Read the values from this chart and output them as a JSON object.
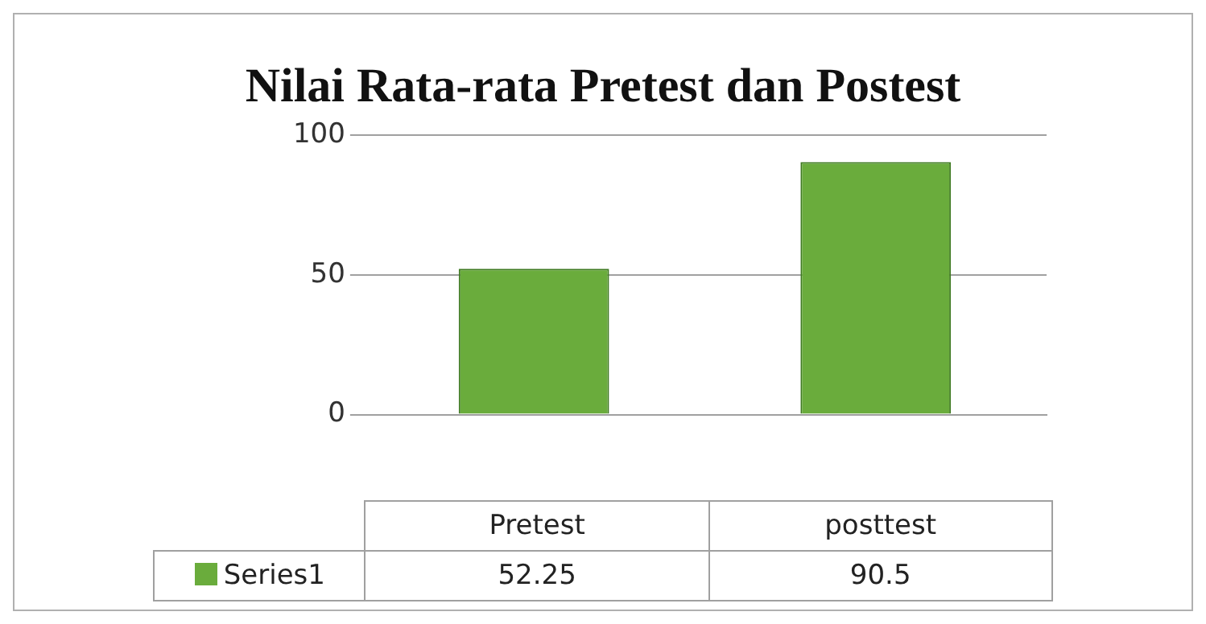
{
  "chart_data": {
    "type": "bar",
    "title": "Nilai Rata-rata Pretest dan Postest",
    "categories": [
      "Pretest",
      "posttest"
    ],
    "series": [
      {
        "name": "Series1",
        "color": "#6aac3c",
        "values": [
          52.25,
          90.5
        ]
      }
    ],
    "ylim": [
      0,
      100
    ],
    "yticks": [
      0,
      50,
      100
    ],
    "grid": "y",
    "data_labels": true
  }
}
